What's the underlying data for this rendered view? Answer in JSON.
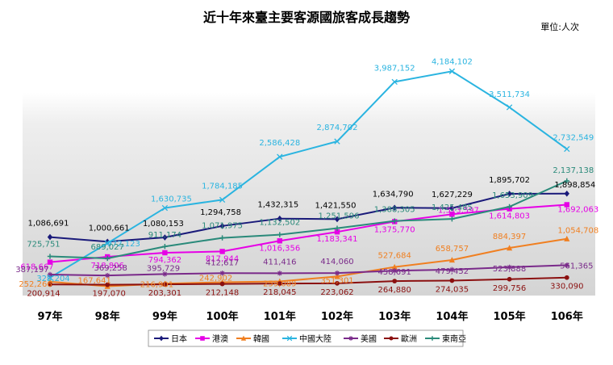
{
  "chart_data": {
    "type": "line",
    "title": "近十年來臺主要客源國旅客成長趨勢",
    "unit_label": "單位:人次",
    "categories": [
      "97年",
      "98年",
      "99年",
      "100年",
      "101年",
      "102年",
      "103年",
      "104年",
      "105年",
      "106年"
    ],
    "ylim": [
      100000,
      4400000
    ],
    "grid": false,
    "legend_position": "bottom",
    "series": [
      {
        "name": "日本",
        "color": "#1a1a7a",
        "marker": "diamond",
        "values": [
          1086691,
          1000661,
          1080153,
          1294758,
          1432315,
          1421550,
          1634790,
          1627229,
          1895702,
          1898854
        ],
        "labels": [
          "1,086,691",
          "1,000,661",
          "1,080,153",
          "1,294,758",
          "1,432,315",
          "1,421,550",
          "1,634,790",
          "1,627,229",
          "1,895,702",
          "1,898,854"
        ]
      },
      {
        "name": "港澳",
        "color": "#e600e6",
        "marker": "square",
        "values": [
          618667,
          718806,
          794362,
          817944,
          1016356,
          1183341,
          1375770,
          1513597,
          1614803,
          1692063
        ],
        "labels": [
          "618,667",
          "718,806",
          "794,362",
          "817,944",
          "1,016,356",
          "1,183,341",
          "1,375,770",
          "1,513,597",
          "1,614,803",
          "1,692,063"
        ]
      },
      {
        "name": "韓國",
        "color": "#f07f20",
        "marker": "triangle",
        "values": [
          252266,
          167641,
          216901,
          242902,
          259089,
          351301,
          527684,
          658757,
          884397,
          1054708
        ],
        "labels": [
          "252,266",
          "167,641",
          "216,901",
          "242,902",
          "259,089",
          "351,301",
          "527,684",
          "658,757",
          "884,397",
          "1,054,708"
        ]
      },
      {
        "name": "中國大陸",
        "color": "#2ab4e0",
        "marker": "x",
        "values": [
          329204,
          972123,
          1630735,
          1784185,
          2586428,
          2874702,
          3987152,
          4184102,
          3511734,
          2732549
        ],
        "labels": [
          "329,204",
          "972,123",
          "1,630,735",
          "1,784,185",
          "2,586,428",
          "2,874,702",
          "3,987,152",
          "4,184,102",
          "3,511,734",
          "2,732,549"
        ]
      },
      {
        "name": "美國",
        "color": "#7a2a8a",
        "marker": "star",
        "values": [
          387197,
          369258,
          395729,
          412617,
          411416,
          414060,
          458691,
          479452,
          523888,
          561365
        ],
        "labels": [
          "387,197",
          "369,258",
          "395,729",
          "412,617",
          "411,416",
          "414,060",
          "458,691",
          "479,452",
          "523,888",
          "561,365"
        ]
      },
      {
        "name": "歐洲",
        "color": "#8b1010",
        "marker": "circle",
        "values": [
          200914,
          197070,
          203301,
          212148,
          218045,
          223062,
          264880,
          274035,
          299756,
          330090
        ],
        "labels": [
          "200,914",
          "197,070",
          "203,301",
          "212,148",
          "218,045",
          "223,062",
          "264,880",
          "274,035",
          "299,756",
          "330,090"
        ]
      },
      {
        "name": "東南亞",
        "color": "#2a8a7a",
        "marker": "plus",
        "values": [
          725751,
          689027,
          911174,
          1071975,
          1132502,
          1251596,
          1388305,
          1425485,
          1653909,
          2137138
        ],
        "labels": [
          "725,751",
          "689,027",
          "911,174",
          "1,071,975",
          "1,132,502",
          "1,251,596",
          "1,388,305",
          "1,425,485",
          "1,653,909",
          "2,137,138"
        ]
      }
    ]
  }
}
